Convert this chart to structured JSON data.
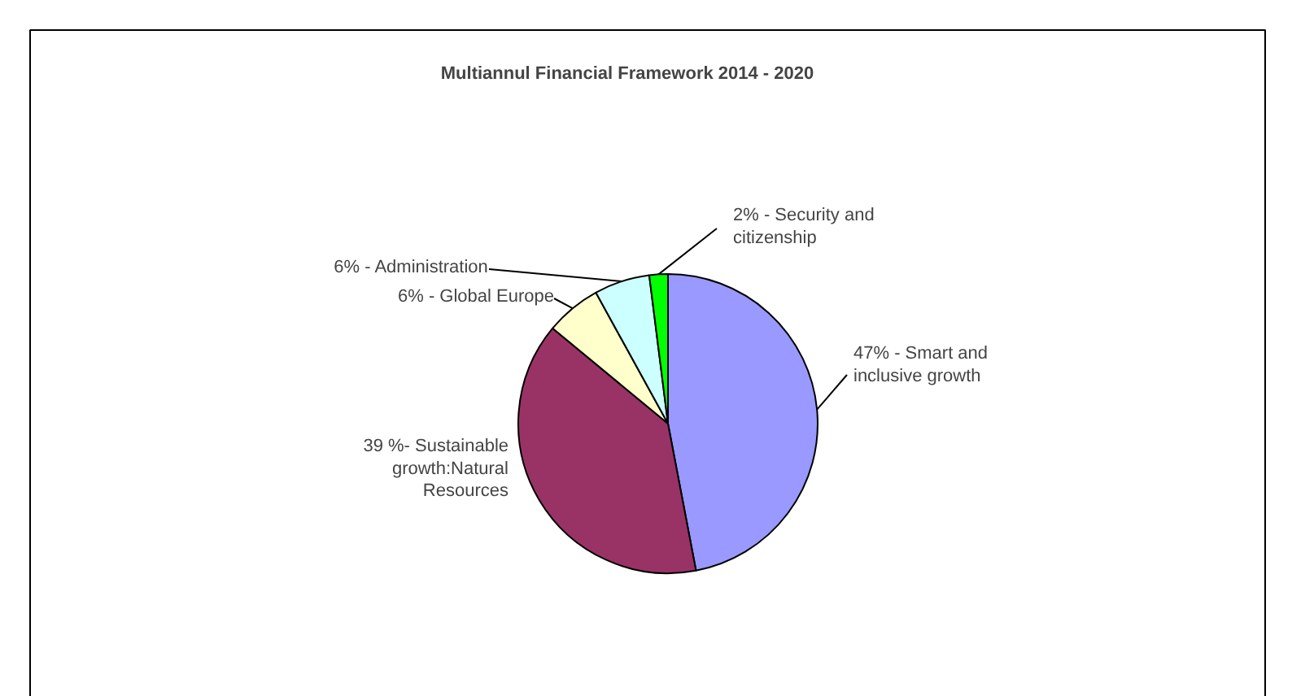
{
  "chart_data": {
    "type": "pie",
    "title": "Multiannul Financial Framework 2014 - 2020",
    "categories": [
      "47% - Smart and\ninclusive growth",
      "39 %- Sustainable\ngrowth:Natural\nResources",
      "6% - Global Europe",
      "6% - Administration",
      "2% - Security and\ncitizenship"
    ],
    "values": [
      47,
      39,
      6,
      6,
      2
    ],
    "colors": [
      "#9999ff",
      "#993366",
      "#ffffcc",
      "#ccffff",
      "#00ff00"
    ]
  }
}
